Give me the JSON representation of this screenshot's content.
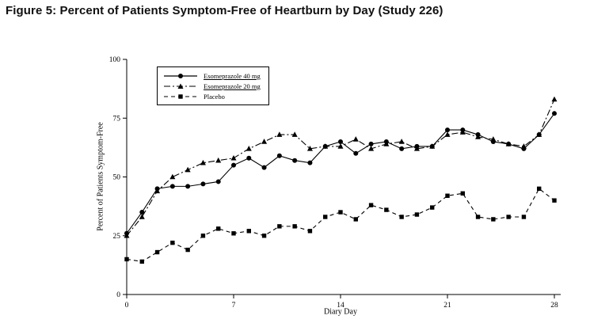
{
  "figure": {
    "title": "Figure 5: Percent of Patients Symptom-Free of Heartburn by Day (Study 226)"
  },
  "chart_data": {
    "type": "line",
    "title": "",
    "xlabel": "Diary Day",
    "ylabel": "Percent of Patients Symptom-Free",
    "xlim": [
      0,
      28
    ],
    "ylim": [
      0,
      100
    ],
    "x_ticks": [
      0,
      7,
      14,
      21,
      28
    ],
    "y_ticks": [
      0,
      25,
      50,
      75,
      100
    ],
    "grid": false,
    "legend_position": "upper-left",
    "line_color": "#000000",
    "x": [
      0,
      1,
      2,
      3,
      4,
      5,
      6,
      7,
      8,
      9,
      10,
      11,
      12,
      13,
      14,
      15,
      16,
      17,
      18,
      19,
      20,
      21,
      22,
      23,
      24,
      25,
      26,
      27,
      28
    ],
    "series": [
      {
        "name": "Esomeprazole 40 mg",
        "marker": "circle",
        "dash": "solid",
        "values": [
          26,
          35,
          45,
          46,
          46,
          47,
          48,
          55,
          58,
          54,
          59,
          57,
          56,
          63,
          65,
          60,
          64,
          65,
          62,
          63,
          63,
          70,
          70,
          68,
          65,
          64,
          62,
          68,
          77
        ]
      },
      {
        "name": "Esomeprazole 20 mg",
        "marker": "triangle",
        "dash": "dashdot",
        "values": [
          25,
          33,
          44,
          50,
          53,
          56,
          57,
          58,
          62,
          65,
          68,
          68,
          62,
          63,
          63,
          66,
          62,
          64,
          65,
          62,
          63,
          68,
          69,
          67,
          66,
          64,
          63,
          68,
          83
        ]
      },
      {
        "name": "Placebo",
        "marker": "square",
        "dash": "dashed",
        "values": [
          15,
          14,
          18,
          22,
          19,
          25,
          28,
          26,
          27,
          25,
          29,
          29,
          27,
          33,
          35,
          32,
          38,
          36,
          33,
          34,
          37,
          42,
          43,
          33,
          32,
          33,
          33,
          45,
          40
        ]
      }
    ]
  }
}
